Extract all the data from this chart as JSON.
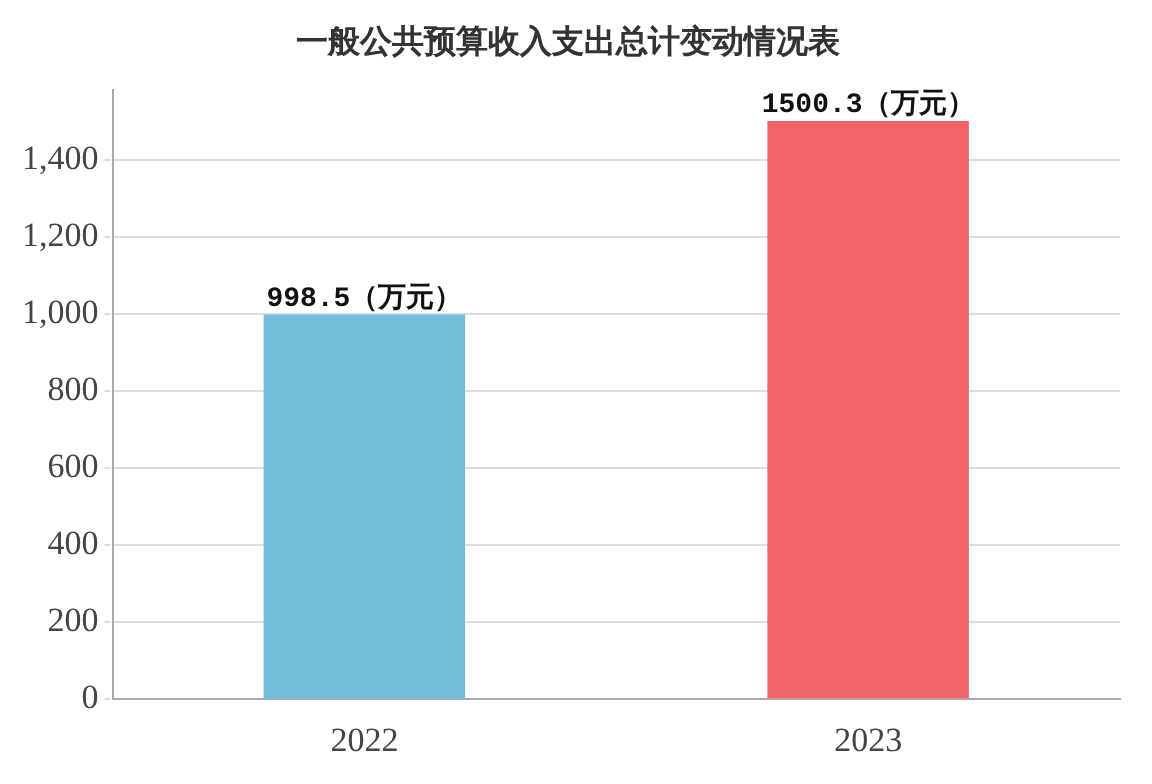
{
  "chart_data": {
    "type": "bar",
    "title": "一般公共预算收入支出总计变动情况表",
    "categories": [
      "2022",
      "2023"
    ],
    "values": [
      998.5,
      1500.3
    ],
    "colors": [
      "#74bedd",
      "#ee6467"
    ],
    "value_labels": [
      "998.5（万元）",
      "1500.3（万元）"
    ],
    "ylim": [
      0,
      1580
    ],
    "yticks": [
      0,
      200,
      400,
      600,
      800,
      {
        "value": 1000,
        "label": "1,000"
      },
      {
        "value": 1200,
        "label": "1,200"
      },
      {
        "value": 1400,
        "label": "1,400"
      }
    ],
    "grid": "y"
  }
}
